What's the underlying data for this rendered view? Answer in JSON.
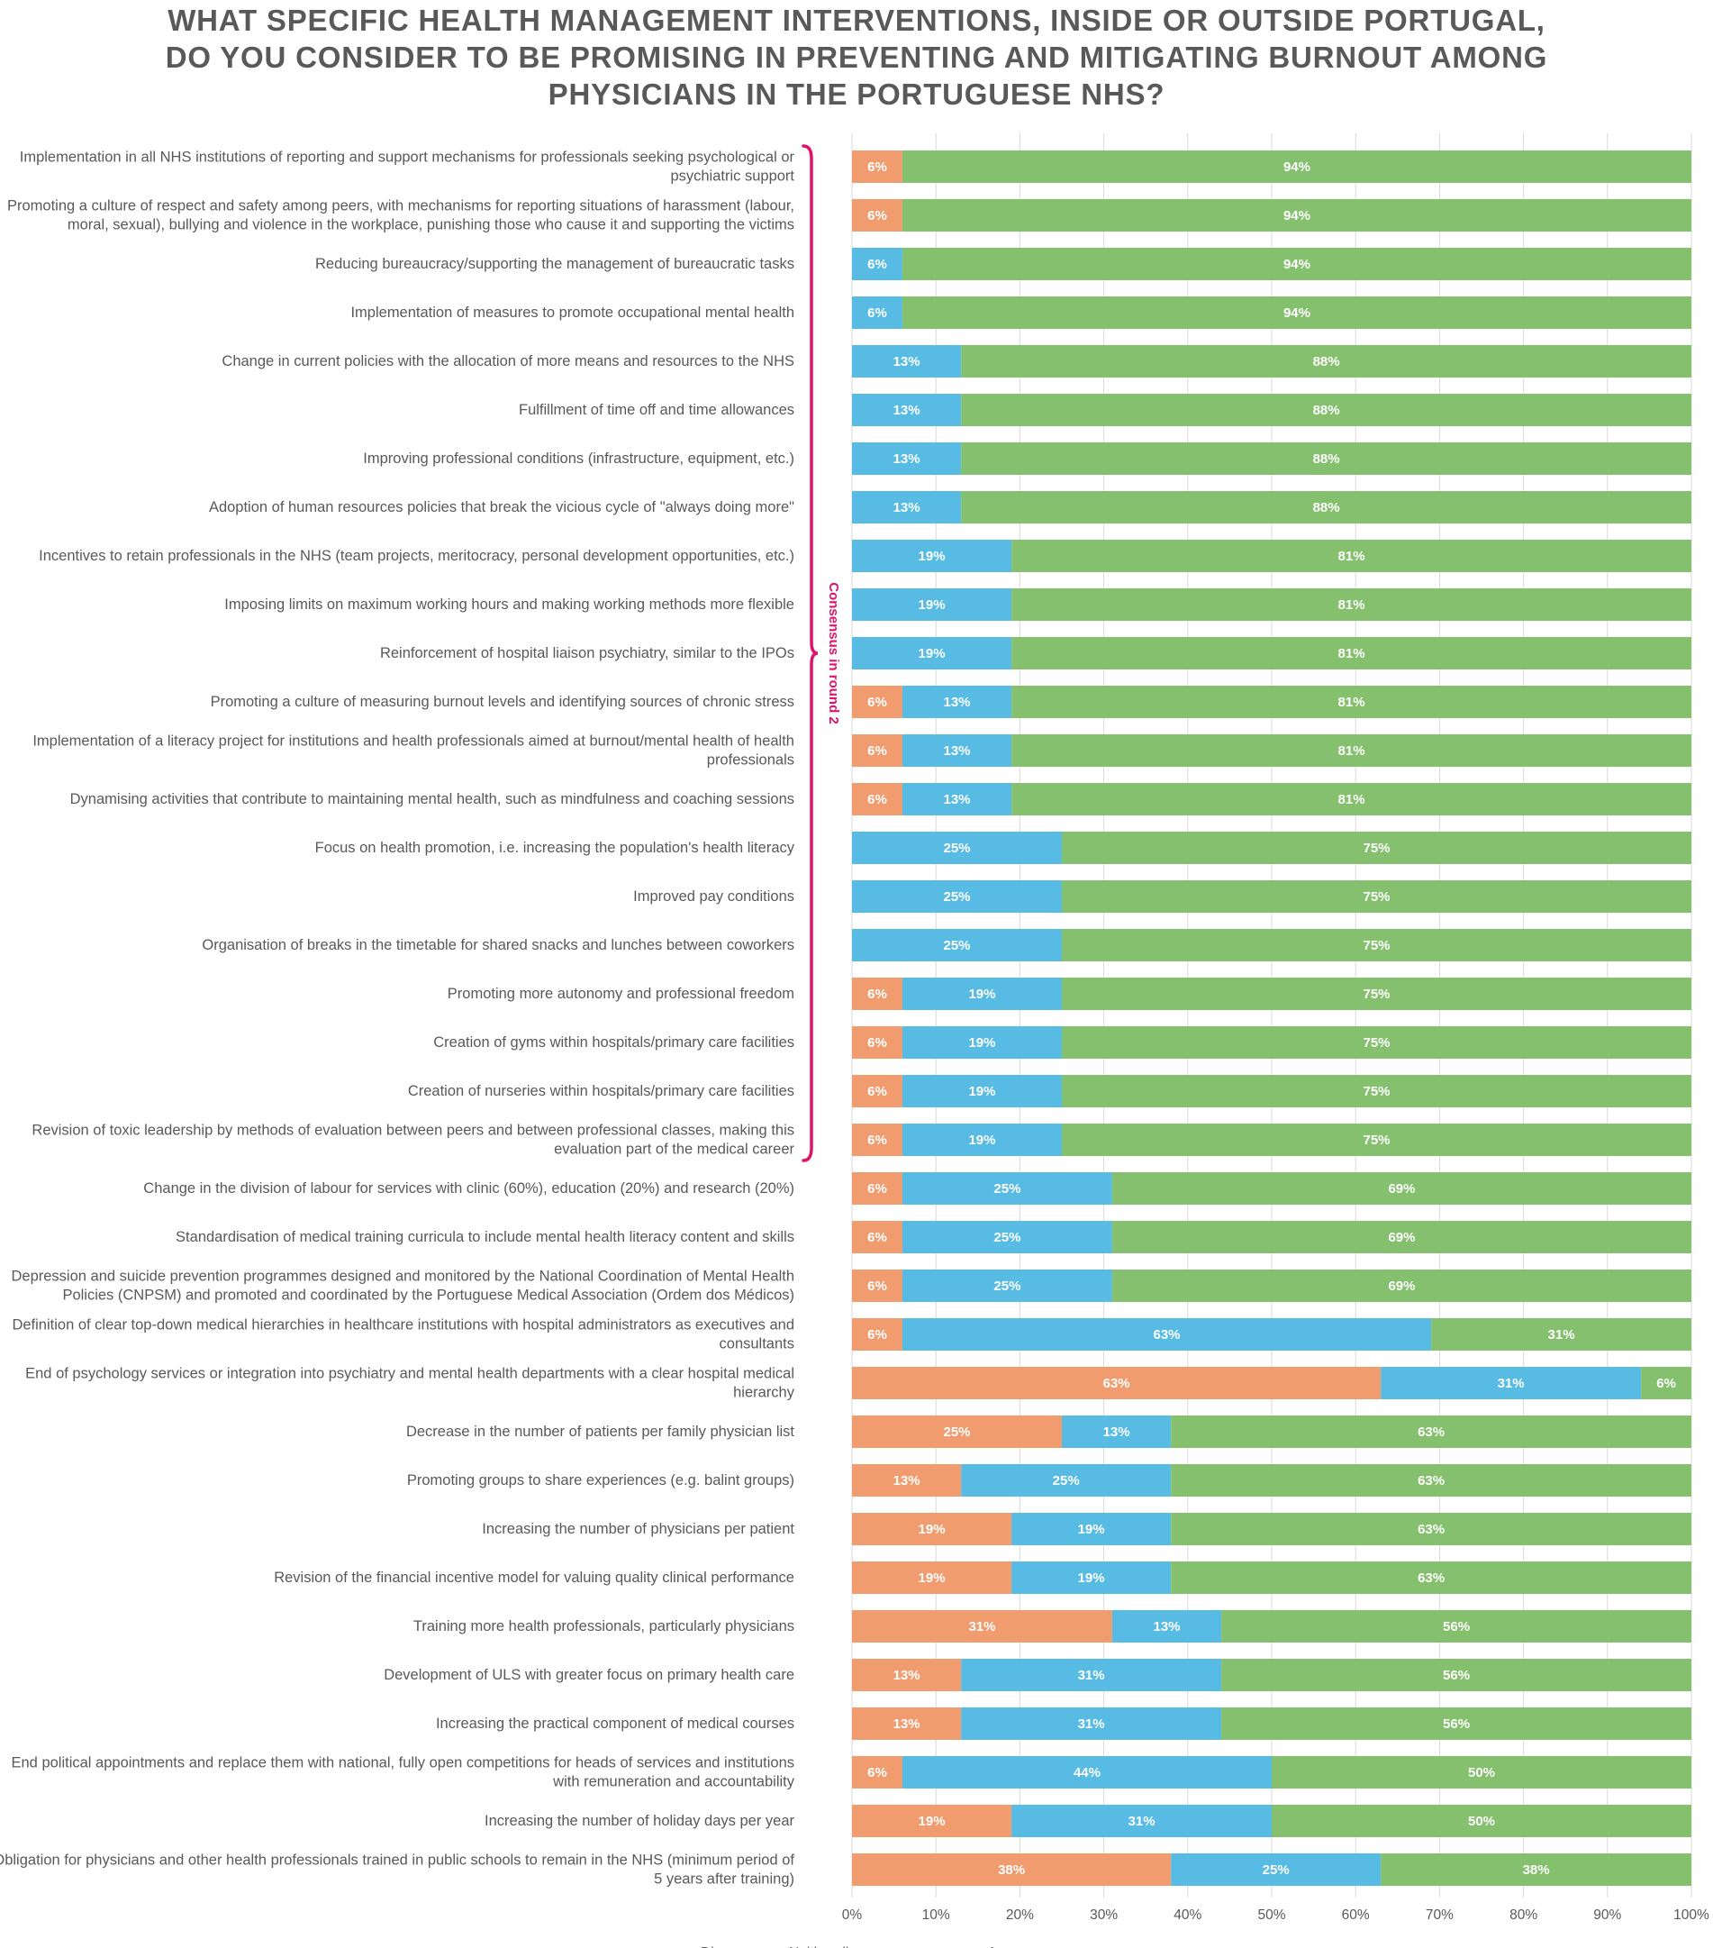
{
  "chart_data": {
    "type": "bar",
    "orientation": "horizontal",
    "stacked": true,
    "title_lines": [
      "WHAT SPECIFIC HEALTH MANAGEMENT INTERVENTIONS, INSIDE OR OUTSIDE PORTUGAL,",
      "DO YOU CONSIDER TO BE PROMISING IN PREVENTING AND MITIGATING BURNOUT AMONG",
      "PHYSICIANS IN THE PORTUGUESE NHS?"
    ],
    "categories": [
      [
        "Implementation in all NHS institutions of reporting and support mechanisms for professionals seeking psychological or",
        "psychiatric support"
      ],
      [
        "Promoting a culture of respect and safety among peers, with mechanisms for reporting situations of harassment (labour,",
        "moral, sexual), bullying and violence in the workplace, punishing those who cause it and supporting the victims"
      ],
      [
        "Reducing bureaucracy/supporting the management of bureaucratic tasks"
      ],
      [
        "Implementation of measures to promote occupational mental health"
      ],
      [
        "Change in current policies with the allocation of more means and resources to the NHS"
      ],
      [
        "Fulfillment of time off and time allowances"
      ],
      [
        "Improving professional conditions (infrastructure, equipment, etc.)"
      ],
      [
        "Adoption of human resources policies that break the vicious cycle of \"always doing more\""
      ],
      [
        "Incentives to retain professionals in the NHS (team projects, meritocracy, personal development opportunities, etc.)"
      ],
      [
        "Imposing limits on maximum working hours and making working methods more flexible"
      ],
      [
        "Reinforcement of hospital liaison psychiatry, similar to the IPOs"
      ],
      [
        "Promoting a culture of measuring burnout levels and identifying sources of chronic stress"
      ],
      [
        "Implementation of a literacy project for institutions and health professionals aimed at burnout/mental health of health",
        "professionals"
      ],
      [
        "Dynamising activities that contribute to maintaining mental health, such as mindfulness and coaching sessions"
      ],
      [
        "Focus on health promotion, i.e. increasing the population's health literacy"
      ],
      [
        "Improved pay conditions"
      ],
      [
        "Organisation of breaks in the timetable for shared snacks and lunches between coworkers"
      ],
      [
        "Promoting more autonomy and professional freedom"
      ],
      [
        "Creation of gyms within hospitals/primary care facilities"
      ],
      [
        "Creation of nurseries within hospitals/primary care facilities"
      ],
      [
        "Revision of toxic leadership by methods of evaluation between peers and between professional classes, making this",
        "evaluation part of the medical career"
      ],
      [
        "Change in the division of labour for services with clinic (60%), education (20%) and research (20%)"
      ],
      [
        "Standardisation of medical training curricula to include mental health literacy content and skills"
      ],
      [
        "Depression and suicide prevention programmes designed and monitored by the National Coordination of Mental Health",
        "Policies (CNPSM) and promoted and coordinated by the Portuguese Medical Association (Ordem dos Médicos)"
      ],
      [
        "Definition of clear top-down medical hierarchies in healthcare institutions with hospital administrators as executives and",
        "consultants"
      ],
      [
        "End of psychology services or integration into psychiatry and mental health departments with a clear hospital medical",
        "hierarchy"
      ],
      [
        "Decrease in the number of patients per family physician list"
      ],
      [
        "Promoting groups to share experiences (e.g. balint groups)"
      ],
      [
        "Increasing the number of physicians per patient"
      ],
      [
        "Revision of the financial incentive model for valuing quality clinical performance"
      ],
      [
        "Training more health professionals, particularly physicians"
      ],
      [
        "Development of ULS with greater focus on primary health care"
      ],
      [
        "Increasing the practical component of medical courses"
      ],
      [
        "End political appointments and replace them with national, fully open competitions for heads of services and institutions",
        "with remuneration and accountability"
      ],
      [
        "Increasing the number of holiday days per year"
      ],
      [
        "Obligation for physicians and other health professionals trained in public schools to remain in the NHS (minimum period of",
        "5 years after training)"
      ]
    ],
    "series": [
      {
        "name": "Disagree",
        "color": "#f09c6e",
        "values": [
          6,
          6,
          0,
          0,
          0,
          0,
          0,
          0,
          0,
          0,
          0,
          6,
          6,
          6,
          0,
          0,
          0,
          6,
          6,
          6,
          6,
          6,
          6,
          6,
          6,
          63,
          25,
          13,
          19,
          19,
          31,
          13,
          13,
          6,
          19,
          38
        ],
        "labels": [
          "6%",
          "6%",
          "",
          "",
          "",
          "",
          "",
          "",
          "",
          "",
          "",
          "6%",
          "6%",
          "6%",
          "",
          "",
          "",
          "6%",
          "6%",
          "6%",
          "6%",
          "6%",
          "6%",
          "6%",
          "6%",
          "63%",
          "25%",
          "13%",
          "19%",
          "19%",
          "31%",
          "13%",
          "13%",
          "6%",
          "19%",
          "38%"
        ]
      },
      {
        "name": "Neither disagree nor agree",
        "color": "#57bbe3",
        "values": [
          0,
          0,
          6,
          6,
          13,
          13,
          13,
          13,
          19,
          19,
          19,
          13,
          13,
          13,
          25,
          25,
          25,
          19,
          19,
          19,
          19,
          25,
          25,
          25,
          63,
          31,
          13,
          25,
          19,
          19,
          13,
          31,
          31,
          44,
          31,
          25
        ],
        "labels": [
          "",
          "",
          "6%",
          "6%",
          "13%",
          "13%",
          "13%",
          "13%",
          "19%",
          "19%",
          "19%",
          "13%",
          "13%",
          "13%",
          "25%",
          "25%",
          "25%",
          "19%",
          "19%",
          "19%",
          "19%",
          "25%",
          "25%",
          "25%",
          "63%",
          "31%",
          "13%",
          "25%",
          "19%",
          "19%",
          "13%",
          "31%",
          "31%",
          "44%",
          "31%",
          "25%"
        ]
      },
      {
        "name": "Agree",
        "color": "#85c06e",
        "values": [
          94,
          94,
          94,
          94,
          88,
          88,
          88,
          88,
          81,
          81,
          81,
          81,
          81,
          81,
          75,
          75,
          75,
          75,
          75,
          75,
          75,
          69,
          69,
          69,
          31,
          6,
          63,
          63,
          63,
          63,
          56,
          56,
          56,
          50,
          50,
          38
        ],
        "labels": [
          "94%",
          "94%",
          "94%",
          "94%",
          "88%",
          "88%",
          "88%",
          "88%",
          "81%",
          "81%",
          "81%",
          "81%",
          "81%",
          "81%",
          "75%",
          "75%",
          "75%",
          "75%",
          "75%",
          "75%",
          "75%",
          "69%",
          "69%",
          "69%",
          "31%",
          "6%",
          "63%",
          "63%",
          "63%",
          "63%",
          "56%",
          "56%",
          "56%",
          "50%",
          "50%",
          "38%"
        ]
      }
    ],
    "x_ticks": [
      "0%",
      "10%",
      "20%",
      "30%",
      "40%",
      "50%",
      "60%",
      "70%",
      "80%",
      "90%",
      "100%"
    ],
    "xlim": [
      0,
      100
    ],
    "grid": true,
    "legend_position": "bottom",
    "annotation": {
      "text": "Consensus in round 2",
      "color": "#e0126c",
      "first_category_index": 0,
      "last_category_index": 20
    }
  }
}
